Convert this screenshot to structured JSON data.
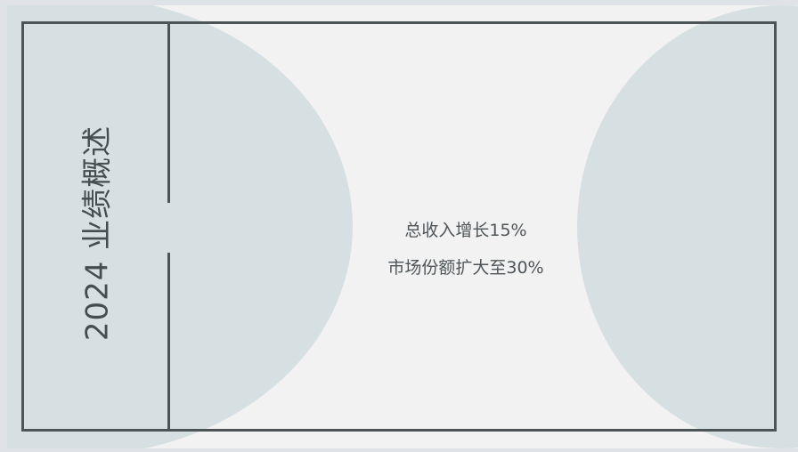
{
  "slide": {
    "title": "2024 业绩概述",
    "points": [
      "总收入增长15%",
      "市场份额扩大至30%"
    ]
  },
  "colors": {
    "background": "#f2f2f2",
    "circle": "#d6dfe1",
    "frame": "#4d5455",
    "text": "#4f5558"
  }
}
